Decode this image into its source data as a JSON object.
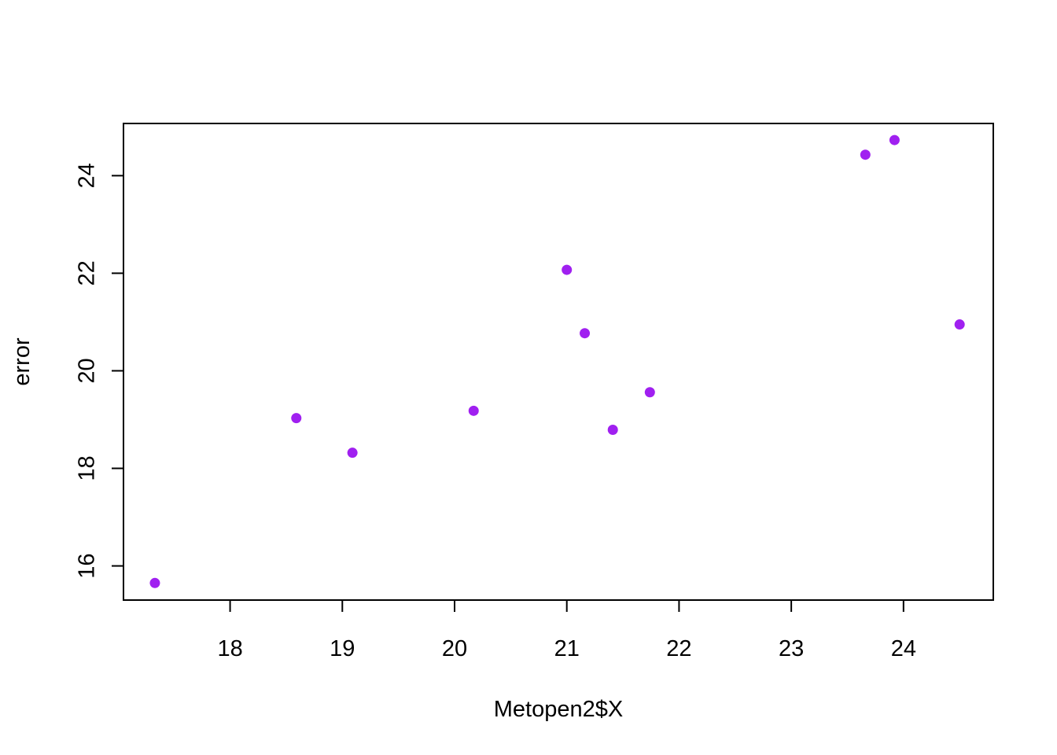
{
  "chart_data": {
    "type": "scatter",
    "title": "",
    "xlabel": "Metopen2$X",
    "ylabel": "error",
    "xlim": [
      17.05,
      24.8
    ],
    "ylim": [
      15.3,
      25.07
    ],
    "x_ticks": [
      18,
      19,
      20,
      21,
      22,
      23,
      24
    ],
    "y_ticks": [
      16,
      18,
      20,
      22,
      24
    ],
    "grid": false,
    "legend": "none",
    "point_color": "#a020f0",
    "points": [
      {
        "x": 17.33,
        "y": 15.65
      },
      {
        "x": 18.59,
        "y": 19.03
      },
      {
        "x": 19.09,
        "y": 18.32
      },
      {
        "x": 20.17,
        "y": 19.18
      },
      {
        "x": 21.0,
        "y": 22.07
      },
      {
        "x": 21.16,
        "y": 20.77
      },
      {
        "x": 21.41,
        "y": 18.79
      },
      {
        "x": 21.74,
        "y": 19.56
      },
      {
        "x": 23.66,
        "y": 24.43
      },
      {
        "x": 23.92,
        "y": 24.73
      },
      {
        "x": 24.5,
        "y": 20.95
      }
    ]
  }
}
